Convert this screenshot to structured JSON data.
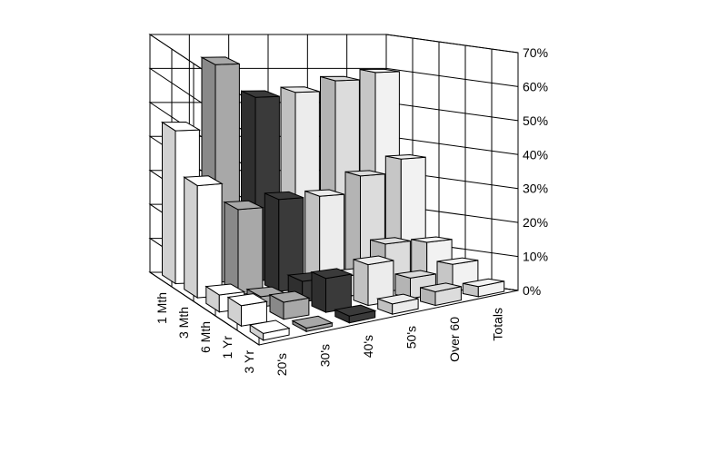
{
  "chart_data": {
    "type": "bar3d",
    "categories": [
      "1 Mth",
      "3 Mth",
      "6 Mth",
      "1 Yr",
      "3 Yr"
    ],
    "series": [
      {
        "name": "20's",
        "color": "#ffffff",
        "values": [
          45,
          33,
          5,
          6,
          2
        ]
      },
      {
        "name": "30's",
        "color": "#a8a8a8",
        "values": [
          64,
          25,
          3,
          5,
          1
        ]
      },
      {
        "name": "40's",
        "color": "#3a3a3a",
        "values": [
          54,
          27,
          6,
          10,
          2
        ]
      },
      {
        "name": "50's",
        "color": "#ececec",
        "values": [
          55,
          27,
          6,
          12,
          3
        ]
      },
      {
        "name": "Over 60",
        "color": "#dcdcdc",
        "values": [
          58,
          32,
          14,
          6,
          4
        ]
      },
      {
        "name": "Totals",
        "color": "#f2f2f2",
        "values": [
          60,
          36,
          13,
          8,
          3
        ]
      }
    ],
    "ylim": [
      0,
      70
    ],
    "yticks": [
      {
        "value": 0,
        "label": "0%"
      },
      {
        "value": 10,
        "label": "10%"
      },
      {
        "value": 20,
        "label": "20%"
      },
      {
        "value": 30,
        "label": "30%"
      },
      {
        "value": 40,
        "label": "40%"
      },
      {
        "value": 50,
        "label": "50%"
      },
      {
        "value": 60,
        "label": "60%"
      },
      {
        "value": 70,
        "label": "70%"
      }
    ],
    "grid": true
  }
}
